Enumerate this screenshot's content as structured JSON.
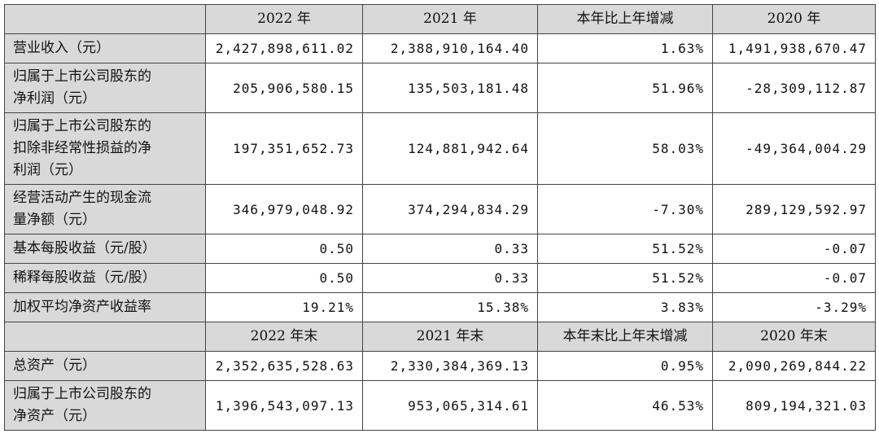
{
  "table": {
    "sections": [
      {
        "header": [
          "2022 年",
          "2021 年",
          "本年比上年增减",
          "2020 年"
        ],
        "rows": [
          {
            "label": [
              "营业收入（元）"
            ],
            "values": [
              "2,427,898,611.02",
              "2,388,910,164.40",
              "1.63%",
              "1,491,938,670.47"
            ]
          },
          {
            "label": [
              "归属于上市公司股东的",
              "净利润（元）"
            ],
            "values": [
              "205,906,580.15",
              "135,503,181.48",
              "51.96%",
              "-28,309,112.87"
            ]
          },
          {
            "label": [
              "归属于上市公司股东的",
              "扣除非经常性损益的净",
              "利润（元）"
            ],
            "values": [
              "197,351,652.73",
              "124,881,942.64",
              "58.03%",
              "-49,364,004.29"
            ]
          },
          {
            "label": [
              "经营活动产生的现金流",
              "量净额（元）"
            ],
            "values": [
              "346,979,048.92",
              "374,294,834.29",
              "-7.30%",
              "289,129,592.97"
            ]
          },
          {
            "label": [
              "基本每股收益（元/股）"
            ],
            "values": [
              "0.50",
              "0.33",
              "51.52%",
              "-0.07"
            ]
          },
          {
            "label": [
              "稀释每股收益（元/股）"
            ],
            "values": [
              "0.50",
              "0.33",
              "51.52%",
              "-0.07"
            ]
          },
          {
            "label": [
              "加权平均净资产收益率"
            ],
            "values": [
              "19.21%",
              "15.38%",
              "3.83%",
              "-3.29%"
            ]
          }
        ]
      },
      {
        "header": [
          "2022 年末",
          "2021 年末",
          "本年末比上年末增减",
          "2020 年末"
        ],
        "rows": [
          {
            "label": [
              "总资产（元）"
            ],
            "values": [
              "2,352,635,528.63",
              "2,330,384,369.13",
              "0.95%",
              "2,090,269,844.22"
            ]
          },
          {
            "label": [
              "归属于上市公司股东的",
              "净资产（元）"
            ],
            "values": [
              "1,396,543,097.13",
              "953,065,314.61",
              "46.53%",
              "809,194,321.03"
            ]
          }
        ]
      }
    ]
  }
}
